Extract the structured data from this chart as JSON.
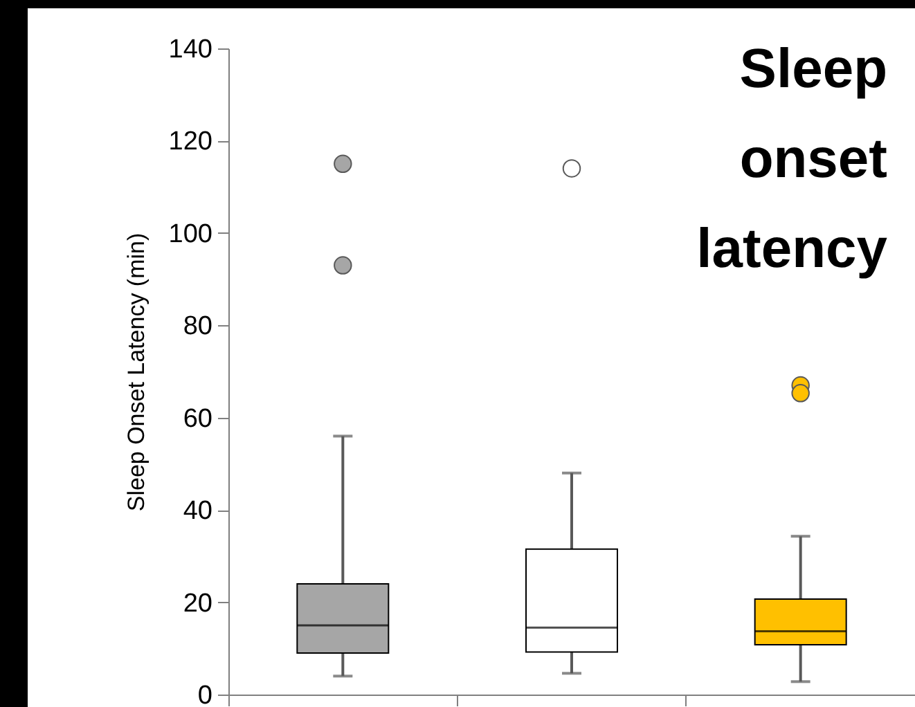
{
  "chart_data": {
    "type": "box",
    "title": "Sleep onset latency",
    "ylabel": "Sleep Onset Latency (min)",
    "categories": [
      null,
      null,
      null
    ],
    "colors": [
      "#a6a6a6",
      "#ffffff",
      "#ffc000"
    ],
    "boxes": [
      {
        "low": 4,
        "q1": 9,
        "median": 15,
        "q3": 24,
        "high": 56,
        "outliers": [
          115,
          93
        ]
      },
      {
        "low": 4.6,
        "q1": 9.2,
        "median": 14.5,
        "q3": 31.5,
        "high": 48,
        "outliers": [
          114
        ]
      },
      {
        "low": 2.8,
        "q1": 10.8,
        "median": 13.7,
        "q3": 20.7,
        "high": 34.3,
        "outliers": [
          67,
          65.3
        ]
      }
    ],
    "ylim": [
      0,
      140
    ],
    "yticks": [
      0,
      20,
      40,
      60,
      80,
      100,
      120,
      140
    ],
    "tick_labels": "y"
  }
}
